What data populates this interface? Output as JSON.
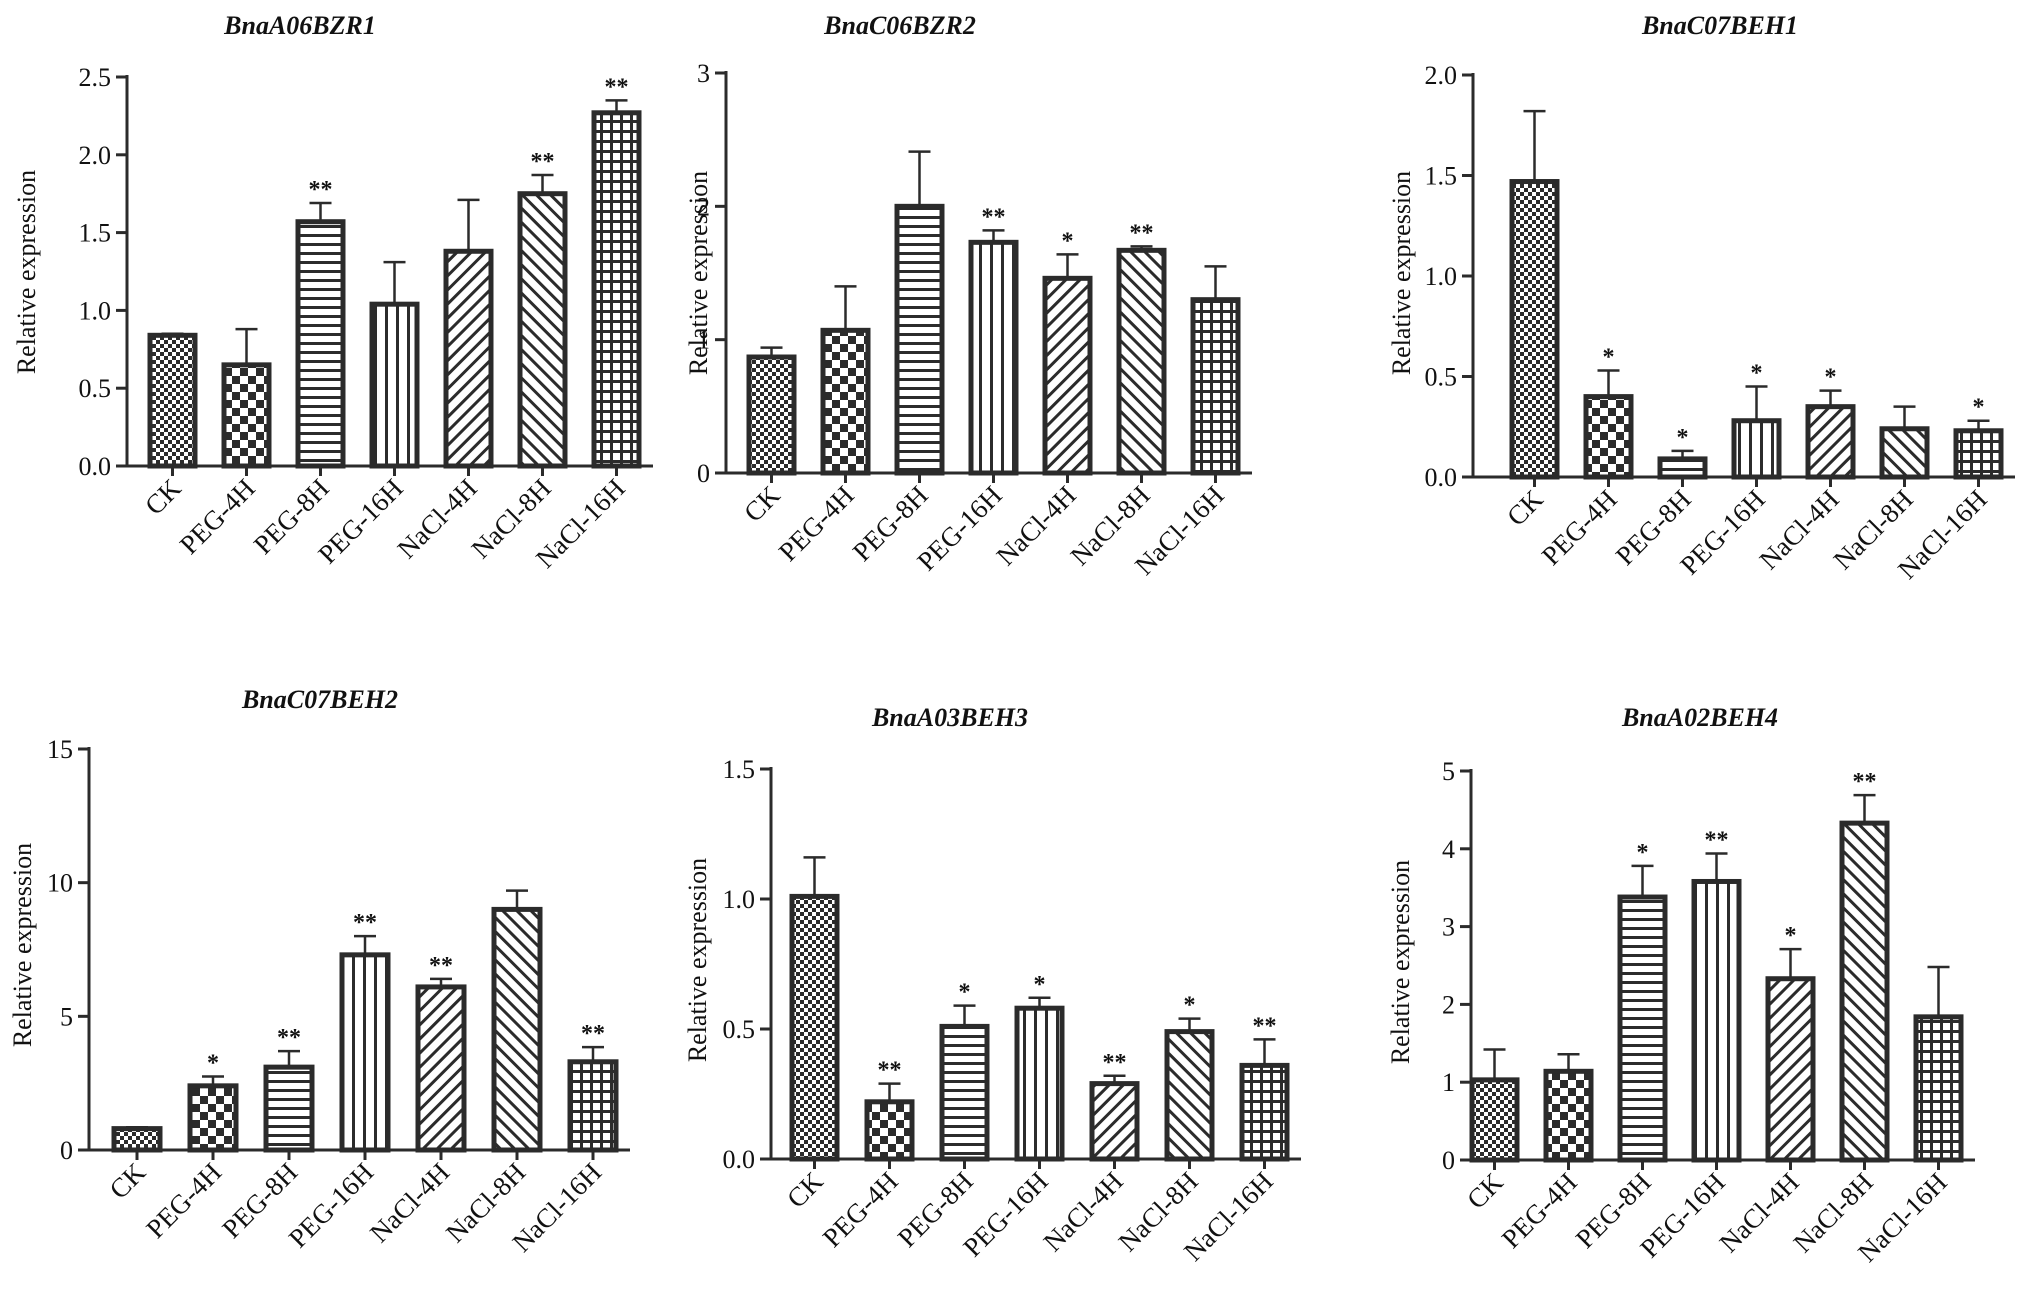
{
  "colors": {
    "ink": "#2b2b2b",
    "background": "#ffffff"
  },
  "chart_data": [
    {
      "type": "bar",
      "title": "BnaA06BZR1",
      "xlabel": "",
      "ylabel": "Relative expression",
      "categories": [
        "CK",
        "PEG-4H",
        "PEG-8H",
        "PEG-16H",
        "NaCl-4H",
        "NaCl-8H",
        "NaCl-16H"
      ],
      "values": [
        0.84,
        0.65,
        1.57,
        1.04,
        1.38,
        1.75,
        2.27
      ],
      "errors": [
        0.01,
        0.23,
        0.12,
        0.27,
        0.33,
        0.12,
        0.08
      ],
      "significance": [
        "",
        "",
        "**",
        "",
        "",
        "**",
        "**"
      ],
      "ylim": [
        0,
        2.5
      ],
      "yticks": [
        0,
        0.5,
        1.0,
        1.5,
        2.0,
        2.5
      ],
      "ytick_labels": [
        "0.0",
        "0.5",
        "1.0",
        "1.5",
        "2.0",
        "2.5"
      ]
    },
    {
      "type": "bar",
      "title": "BnaC06BZR2",
      "xlabel": "",
      "ylabel": "Relative expression",
      "categories": [
        "CK",
        "PEG-4H",
        "PEG-8H",
        "PEG-16H",
        "NaCl-4H",
        "NaCl-8H",
        "NaCl-16H"
      ],
      "values": [
        0.87,
        1.07,
        2.0,
        1.73,
        1.46,
        1.67,
        1.3
      ],
      "errors": [
        0.07,
        0.33,
        0.41,
        0.09,
        0.18,
        0.03,
        0.25
      ],
      "significance": [
        "",
        "",
        "",
        "**",
        "*",
        "**",
        ""
      ],
      "ylim": [
        0,
        3
      ],
      "yticks": [
        0,
        1,
        2,
        3
      ],
      "ytick_labels": [
        "0",
        "1",
        "2",
        "3"
      ]
    },
    {
      "type": "bar",
      "title": "BnaC07BEH1",
      "xlabel": "",
      "ylabel": "Relative expression",
      "categories": [
        "CK",
        "PEG-4H",
        "PEG-8H",
        "PEG-16H",
        "NaCl-4H",
        "NaCl-8H",
        "NaCl-16H"
      ],
      "values": [
        1.47,
        0.4,
        0.09,
        0.28,
        0.35,
        0.24,
        0.23
      ],
      "errors": [
        0.35,
        0.13,
        0.04,
        0.17,
        0.08,
        0.11,
        0.05
      ],
      "significance": [
        "",
        "*",
        "*",
        "*",
        "*",
        "",
        "*"
      ],
      "ylim": [
        0,
        2.0
      ],
      "yticks": [
        0,
        0.5,
        1.0,
        1.5,
        2.0
      ],
      "ytick_labels": [
        "0.0",
        "0.5",
        "1.0",
        "1.5",
        "2.0"
      ]
    },
    {
      "type": "bar",
      "title": "BnaC07BEH2",
      "xlabel": "",
      "ylabel": "Relative expression",
      "categories": [
        "CK",
        "PEG-4H",
        "PEG-8H",
        "PEG-16H",
        "NaCl-4H",
        "NaCl-8H",
        "NaCl-16H"
      ],
      "values": [
        0.8,
        2.4,
        3.1,
        7.3,
        6.1,
        9.0,
        3.3
      ],
      "errors": [
        0.05,
        0.35,
        0.6,
        0.7,
        0.3,
        0.7,
        0.55
      ],
      "significance": [
        "",
        "*",
        "**",
        "**",
        "**",
        "",
        "**"
      ],
      "ylim": [
        0,
        15
      ],
      "yticks": [
        0,
        5,
        10,
        15
      ],
      "ytick_labels": [
        "0",
        "5",
        "10",
        "15"
      ]
    },
    {
      "type": "bar",
      "title": "BnaA03BEH3",
      "xlabel": "",
      "ylabel": "Relative expression",
      "categories": [
        "CK",
        "PEG-4H",
        "PEG-8H",
        "PEG-16H",
        "NaCl-4H",
        "NaCl-8H",
        "NaCl-16H"
      ],
      "values": [
        1.01,
        0.22,
        0.51,
        0.58,
        0.29,
        0.49,
        0.36
      ],
      "errors": [
        0.15,
        0.07,
        0.08,
        0.04,
        0.03,
        0.05,
        0.1
      ],
      "significance": [
        "",
        "**",
        "*",
        "*",
        "**",
        "*",
        "**"
      ],
      "ylim": [
        0,
        1.5
      ],
      "yticks": [
        0,
        0.5,
        1.0,
        1.5
      ],
      "ytick_labels": [
        "0.0",
        "0.5",
        "1.0",
        "1.5"
      ]
    },
    {
      "type": "bar",
      "title": "BnaA02BEH4",
      "xlabel": "",
      "ylabel": "Relative expression",
      "categories": [
        "CK",
        "PEG-4H",
        "PEG-8H",
        "PEG-16H",
        "NaCl-4H",
        "NaCl-8H",
        "NaCl-16H"
      ],
      "values": [
        1.03,
        1.14,
        3.38,
        3.58,
        2.33,
        4.33,
        1.84
      ],
      "errors": [
        0.39,
        0.22,
        0.4,
        0.36,
        0.38,
        0.36,
        0.64
      ],
      "significance": [
        "",
        "",
        "*",
        "**",
        "*",
        "**",
        ""
      ],
      "ylim": [
        0,
        5
      ],
      "yticks": [
        0,
        1,
        2,
        3,
        4,
        5
      ],
      "ytick_labels": [
        "0",
        "1",
        "2",
        "3",
        "4",
        "5"
      ]
    }
  ]
}
